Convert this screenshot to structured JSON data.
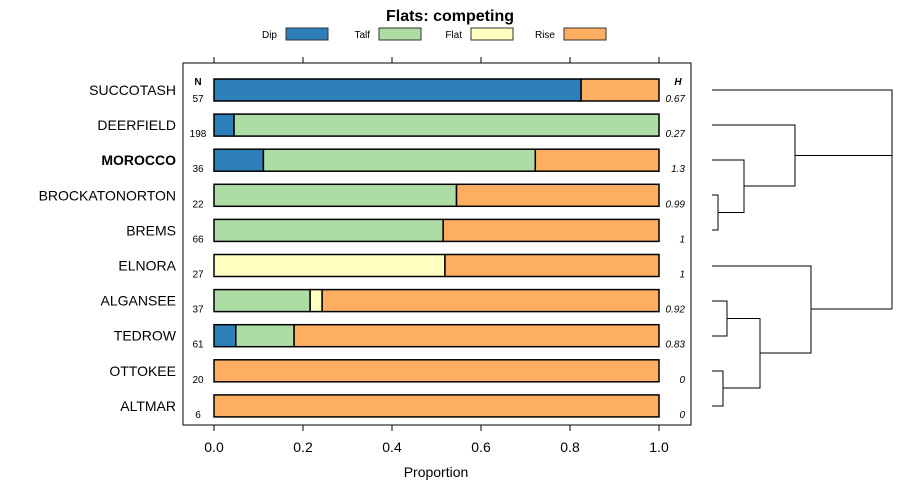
{
  "chart_data": {
    "type": "bar",
    "stacked": true,
    "orientation": "horizontal",
    "title": "Flats: competing",
    "xlabel": "Proportion",
    "ylabel": "",
    "xlim": [
      0,
      1
    ],
    "xticks": [
      "0.0",
      "0.2",
      "0.4",
      "0.6",
      "0.8",
      "1.0"
    ],
    "legend_position": "top",
    "n_header": "N",
    "h_header": "H",
    "series": [
      {
        "name": "Dip",
        "color": "#2c7fb8"
      },
      {
        "name": "Talf",
        "color": "#addda5"
      },
      {
        "name": "Flat",
        "color": "#ffffc0"
      },
      {
        "name": "Rise",
        "color": "#fdae61"
      }
    ],
    "categories": [
      "SUCCOTASH",
      "DEERFIELD",
      "MOROCCO",
      "BROCKATONORTON",
      "BREMS",
      "ELNORA",
      "ALGANSEE",
      "TEDROW",
      "OTTOKEE",
      "ALTMAR"
    ],
    "bold_category": "MOROCCO",
    "rows": [
      {
        "name": "SUCCOTASH",
        "n": "57",
        "h": "0.67",
        "values": [
          0.825,
          0,
          0,
          0.175
        ]
      },
      {
        "name": "DEERFIELD",
        "n": "198",
        "h": "0.27",
        "values": [
          0.045,
          0.955,
          0,
          0
        ]
      },
      {
        "name": "MOROCCO",
        "n": "36",
        "h": "1.3",
        "values": [
          0.111,
          0.611,
          0,
          0.278
        ]
      },
      {
        "name": "BROCKATONORTON",
        "n": "22",
        "h": "0.99",
        "values": [
          0,
          0.545,
          0,
          0.455
        ]
      },
      {
        "name": "BREMS",
        "n": "66",
        "h": "1",
        "values": [
          0,
          0.515,
          0,
          0.485
        ]
      },
      {
        "name": "ELNORA",
        "n": "27",
        "h": "1",
        "values": [
          0,
          0,
          0.519,
          0.481
        ]
      },
      {
        "name": "ALGANSEE",
        "n": "37",
        "h": "0.92",
        "values": [
          0,
          0.216,
          0.027,
          0.757
        ]
      },
      {
        "name": "TEDROW",
        "n": "61",
        "h": "0.83",
        "values": [
          0.049,
          0.131,
          0,
          0.82
        ]
      },
      {
        "name": "OTTOKEE",
        "n": "20",
        "h": "0",
        "values": [
          0,
          0,
          0,
          1
        ]
      },
      {
        "name": "ALTMAR",
        "n": "6",
        "h": "0",
        "values": [
          0,
          0,
          0,
          1
        ]
      }
    ]
  }
}
